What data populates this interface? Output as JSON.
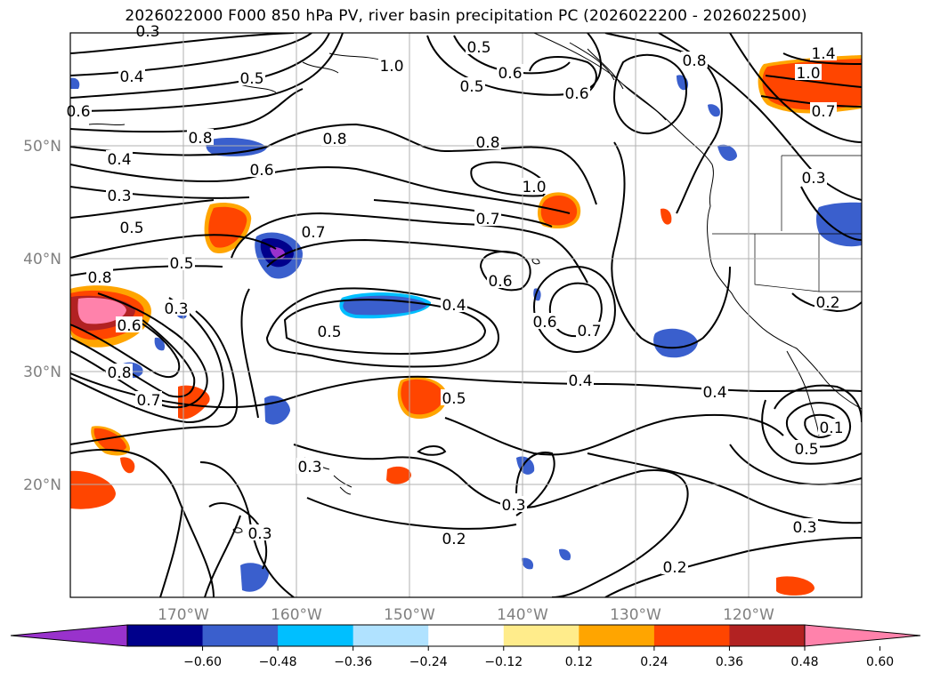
{
  "title": "2026022000 F000 850 hPa PV, river basin precipitation PC (2026022200 - 2026022500)",
  "map": {
    "projection": "PlateCarree",
    "lon_range": [
      -180,
      -110
    ],
    "lat_range": [
      10,
      60
    ],
    "lat_ticks": [
      {
        "value": 20,
        "label": "20°N"
      },
      {
        "value": 30,
        "label": "30°N"
      },
      {
        "value": 40,
        "label": "40°N"
      },
      {
        "value": 50,
        "label": "50°N"
      }
    ],
    "lon_ticks": [
      {
        "value": -170,
        "label": "170°W"
      },
      {
        "value": -160,
        "label": "160°W"
      },
      {
        "value": -150,
        "label": "150°W"
      },
      {
        "value": -140,
        "label": "140°W"
      },
      {
        "value": -130,
        "label": "130°W"
      },
      {
        "value": -120,
        "label": "120°W"
      }
    ],
    "contour_labels": [
      "0.3",
      "0.4",
      "0.5",
      "0.6",
      "0.8",
      "0.5",
      "0.5",
      "0.6",
      "0.6",
      "0.8",
      "1.0",
      "1.4",
      "1.0",
      "0.7",
      "0.8",
      "0.4",
      "0.6",
      "0.3",
      "0.8",
      "1.0",
      "0.7",
      "0.5",
      "0.7",
      "0.3",
      "0.5",
      "0.8",
      "0.6",
      "0.3",
      "0.6",
      "0.4",
      "0.6",
      "0.7",
      "0.5",
      "0.8",
      "0.7",
      "0.4",
      "0.4",
      "0.5",
      "0.1",
      "0.5",
      "0.3",
      "0.3",
      "0.2",
      "0.3",
      "0.2",
      "0.3",
      "0.2"
    ]
  },
  "colorbar": {
    "levels": [
      -0.72,
      -0.6,
      -0.48,
      -0.36,
      -0.24,
      -0.12,
      0.12,
      0.24,
      0.36,
      0.48,
      0.6,
      0.72
    ],
    "tick_labels": [
      "−0.60",
      "−0.48",
      "−0.36",
      "−0.24",
      "−0.12",
      "0.12",
      "0.24",
      "0.36",
      "0.48",
      "0.60"
    ],
    "colors": [
      "#9932cc",
      "#00008b",
      "#3a5fcd",
      "#00bfff",
      "#b0e2ff",
      "#ffffff",
      "#ffec8b",
      "#ffa500",
      "#ff4500",
      "#b22222",
      "#ff82ab"
    ],
    "extend": "both"
  }
}
